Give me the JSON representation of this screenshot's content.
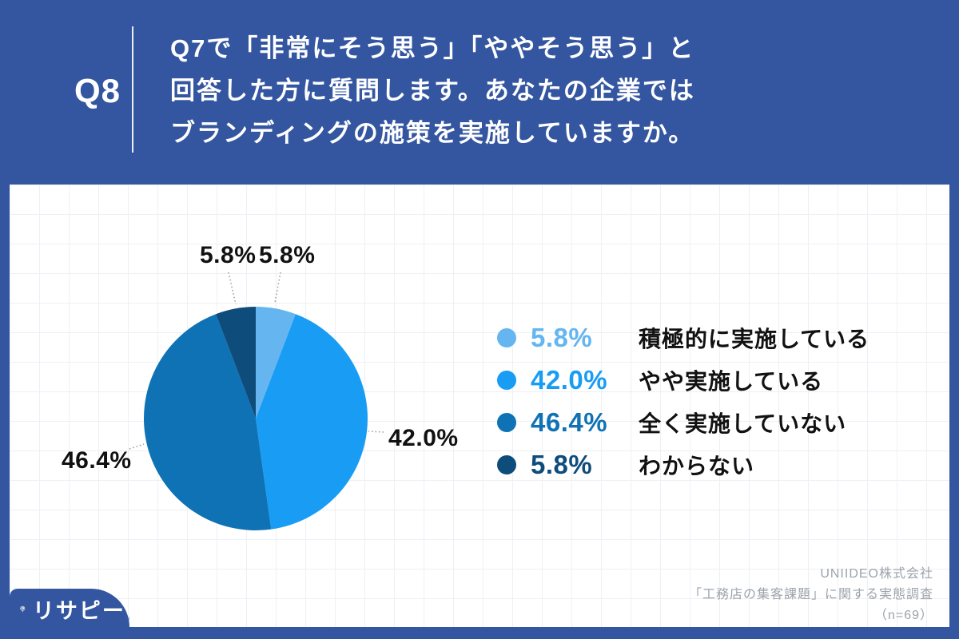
{
  "header": {
    "q_number": "Q8",
    "question_lines": [
      "Q7で「非常にそう思う」「ややそう思う」と",
      "回答した方に質問します。あなたの企業では",
      "ブランディングの施策を実施していますか。"
    ]
  },
  "chart_data": {
    "type": "pie",
    "unit": "%",
    "start_angle_deg": -90,
    "direction": "clockwise",
    "legend_position": "right",
    "series": [
      {
        "name": "積極的に実施している",
        "value": 5.8,
        "pct_label": "5.8%",
        "color": "#64B5F0"
      },
      {
        "name": "やや実施している",
        "value": 42.0,
        "pct_label": "42.0%",
        "color": "#189CF4"
      },
      {
        "name": "全く実施していない",
        "value": 46.4,
        "pct_label": "46.4%",
        "color": "#0E72B5"
      },
      {
        "name": "わからない",
        "value": 5.8,
        "pct_label": "5.8%",
        "color": "#0E4C7C"
      }
    ]
  },
  "footer": {
    "logo_text": "リサピー",
    "source_lines": [
      "UNIIDEO株式会社",
      "「工務店の集客課題」に関する実態調査",
      "（n=69）"
    ]
  },
  "colors": {
    "background": "#3456A0",
    "card": "#FFFFFF",
    "grid_line": "#EDF0F4",
    "leader_line": "#999999",
    "label_text": "#111111",
    "source_text": "#9CA3AB",
    "brand_dot": "#8EB8E8"
  }
}
